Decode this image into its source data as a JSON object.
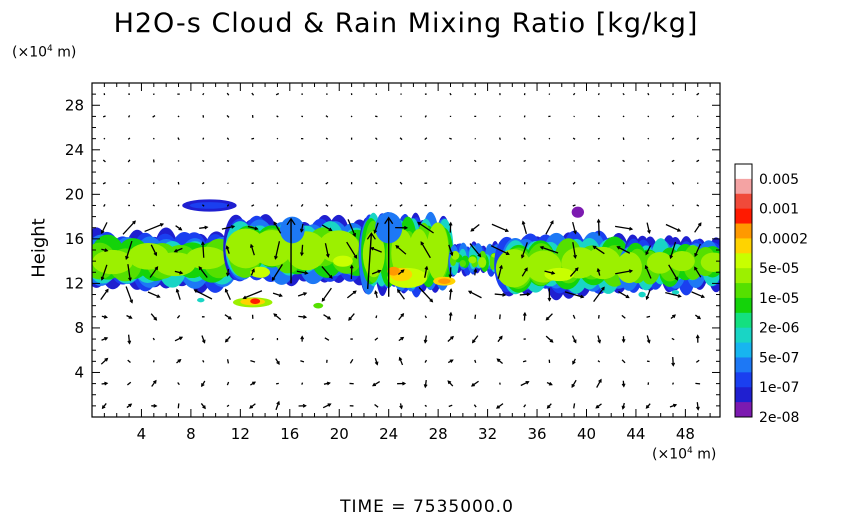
{
  "chart_data": {
    "type": "heatmap",
    "title": "H2O-s Cloud & Rain Mixing Ratio [kg/kg]",
    "ylabel": "Height",
    "y_unit_base": "(×10",
    "y_unit_exp": "4",
    "y_unit_tail": " m)",
    "x_unit_base": "(×10",
    "x_unit_exp": "4",
    "x_unit_tail": " m)",
    "xlim": [
      0,
      50.8
    ],
    "ylim": [
      0,
      30
    ],
    "x_ticks": [
      "4",
      "8",
      "12",
      "16",
      "20",
      "24",
      "28",
      "32",
      "36",
      "40",
      "44",
      "48"
    ],
    "x_tick_values": [
      4,
      8,
      12,
      16,
      20,
      24,
      28,
      32,
      36,
      40,
      44,
      48
    ],
    "y_ticks": [
      "4",
      "8",
      "12",
      "16",
      "20",
      "24",
      "28"
    ],
    "y_tick_values": [
      4,
      8,
      12,
      16,
      20,
      24,
      28
    ],
    "colorbar": {
      "labels": [
        "0.005",
        "0.001",
        "0.0002",
        "5e-05",
        "1e-05",
        "2e-06",
        "5e-07",
        "1e-07",
        "2e-08"
      ],
      "colors": [
        "#ffffff",
        "#f4a3a3",
        "#f04a3a",
        "#ff1a00",
        "#ff9900",
        "#ffd300",
        "#c8ff00",
        "#9cf000",
        "#55e000",
        "#14d30a",
        "#14e080",
        "#19d5c5",
        "#17b5f0",
        "#1d78f5",
        "#1a3ff0",
        "#1f1fd0",
        "#7c1ab0"
      ]
    },
    "cloud_layer": {
      "approx_bottom": 11,
      "approx_top": 18,
      "peak_values_near_x": [
        24,
        27,
        13
      ]
    },
    "vectors": "wind field arrows overlaid"
  },
  "footer": {
    "time_label": "TIME  =  7535000.0"
  }
}
